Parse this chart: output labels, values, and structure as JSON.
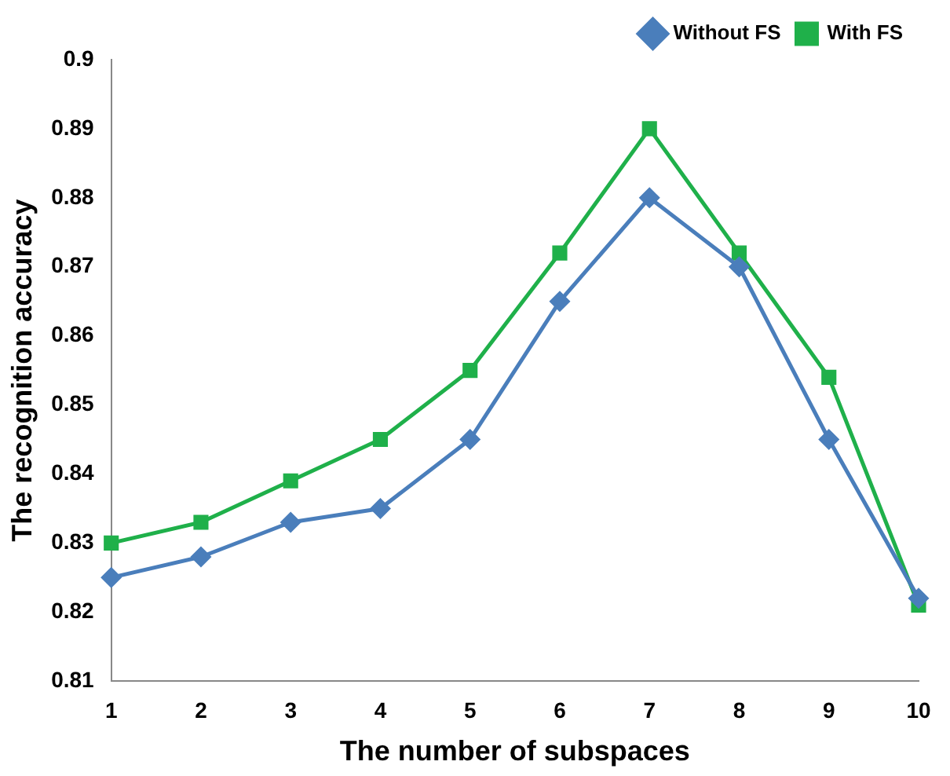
{
  "chart_data": {
    "type": "line",
    "xlabel": "The number of subspaces",
    "ylabel": "The recognition accuracy",
    "categories": [
      "1",
      "2",
      "3",
      "4",
      "5",
      "6",
      "7",
      "8",
      "9",
      "10"
    ],
    "series": [
      {
        "name": "Without FS",
        "color": "#4a7ebb",
        "marker": "diamond",
        "values": [
          0.825,
          0.828,
          0.833,
          0.835,
          0.845,
          0.865,
          0.88,
          0.87,
          0.845,
          0.822
        ]
      },
      {
        "name": "With FS",
        "color": "#1fb04a",
        "marker": "square",
        "values": [
          0.83,
          0.833,
          0.839,
          0.845,
          0.855,
          0.872,
          0.89,
          0.872,
          0.854,
          0.821
        ]
      }
    ],
    "ylim": [
      0.81,
      0.9
    ],
    "yticks": [
      0.81,
      0.82,
      0.83,
      0.84,
      0.85,
      0.86,
      0.87,
      0.88,
      0.89,
      0.9
    ],
    "grid": false,
    "legend": "top right",
    "line_style": "solid"
  }
}
